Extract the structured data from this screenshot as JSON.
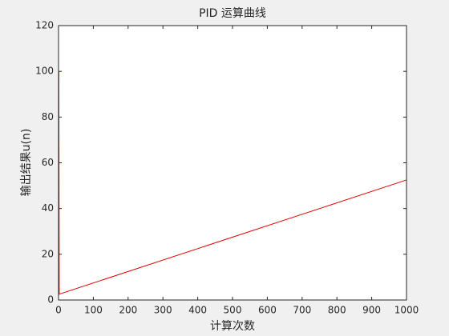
{
  "chart_data": {
    "type": "line",
    "title": "PID 运算曲线",
    "x_label": "计算次数",
    "y_label": "输出结果u(n)",
    "x": [
      1,
      2,
      1000
    ],
    "values": [
      100,
      2.55,
      52.5
    ],
    "color": "#e00000",
    "xlim": [
      0,
      1000
    ],
    "xticks": [
      0,
      100,
      200,
      300,
      400,
      500,
      600,
      700,
      800,
      900,
      1000
    ],
    "ylim": [
      0,
      120
    ],
    "yticks": [
      0,
      20,
      40,
      60,
      80,
      100,
      120
    ],
    "box": true
  }
}
